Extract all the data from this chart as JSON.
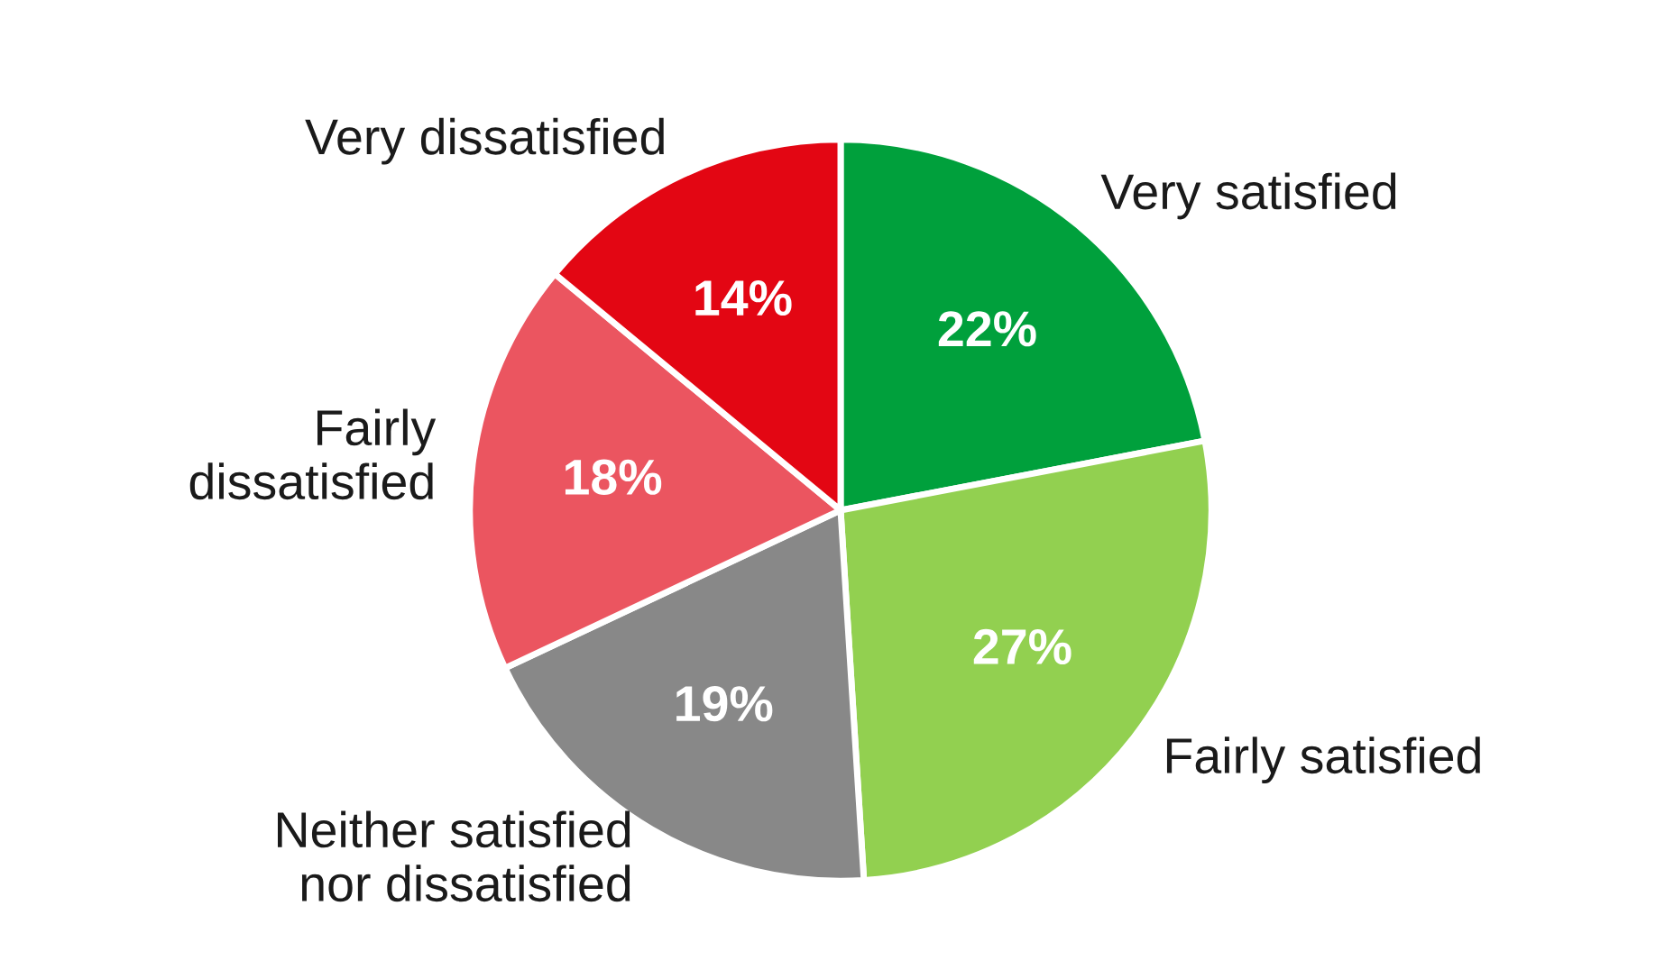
{
  "chart_data": {
    "type": "pie",
    "categories": [
      "Very satisfied",
      "Fairly satisfied",
      "Neither satisfied\nnor dissatisfied",
      "Fairly\ndissatisfied",
      "Very dissatisfied"
    ],
    "values": [
      22,
      27,
      19,
      18,
      14
    ],
    "colors": [
      "#00a03c",
      "#92d050",
      "#888888",
      "#eb5560",
      "#e30613"
    ],
    "value_labels": [
      "22%",
      "27%",
      "19%",
      "18%",
      "14%"
    ]
  }
}
